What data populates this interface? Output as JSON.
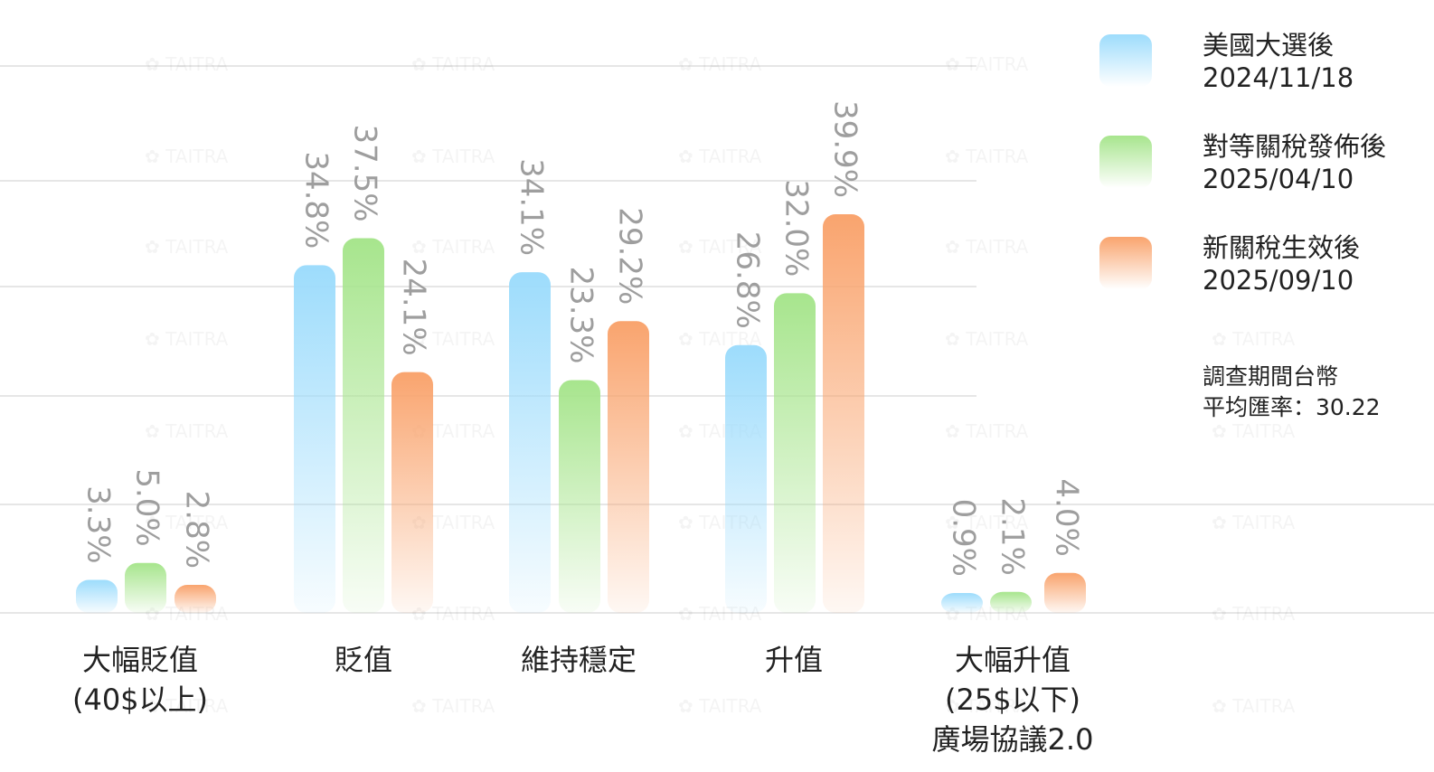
{
  "chart_data": {
    "type": "bar",
    "categories": [
      "大幅貶值\n(40$以上)",
      "貶值",
      "維持穩定",
      "升值",
      "大幅升值\n(25$以下)\n廣場協議2.0"
    ],
    "series": [
      {
        "name": "美國大選後",
        "date": "2024/11/18",
        "values": [
          3.3,
          34.8,
          34.1,
          26.8,
          0.9
        ],
        "color": "#9ddcfc"
      },
      {
        "name": "對等關稅發佈後",
        "date": "2025/04/10",
        "values": [
          5.0,
          37.5,
          23.3,
          32.0,
          2.1
        ],
        "color": "#a7e58d"
      },
      {
        "name": "新關稅生效後",
        "date": "2025/09/10",
        "values": [
          2.8,
          24.1,
          29.2,
          39.9,
          4.0
        ],
        "color": "#f9a46e"
      }
    ],
    "value_labels": [
      [
        "3.3%",
        "34.8%",
        "34.1%",
        "26.8%",
        "0.9%"
      ],
      [
        "5.0%",
        "37.5%",
        "23.3%",
        "32.0%",
        "2.1%"
      ],
      [
        "2.8%",
        "24.1%",
        "29.2%",
        "39.9%",
        "4.0%"
      ]
    ],
    "ylim": [
      0,
      45
    ],
    "legend_position": "top-right",
    "grid": true
  },
  "note": {
    "line1": "調查期間台幣",
    "line2": "平均匯率：30.22"
  },
  "watermark": "TAITRA"
}
